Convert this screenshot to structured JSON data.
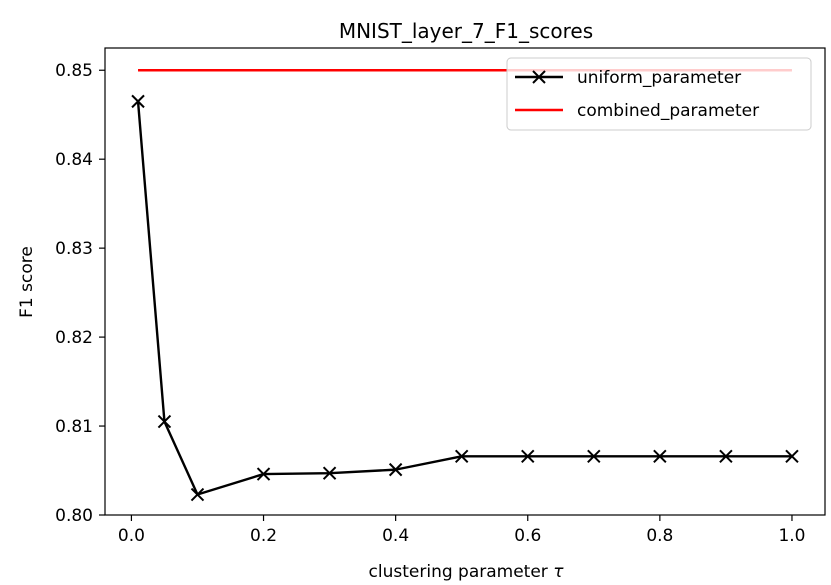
{
  "chart_data": {
    "type": "line",
    "title": "MNIST_layer_7_F1_scores",
    "xlabel_main": "clustering parameter ",
    "xlabel_symbol": "τ",
    "ylabel": "F1 score",
    "xlim": [
      -0.04,
      1.05
    ],
    "ylim": [
      0.8,
      0.8525
    ],
    "x_ticks": [
      0.0,
      0.2,
      0.4,
      0.6,
      0.8,
      1.0
    ],
    "x_tick_labels": [
      "0.0",
      "0.2",
      "0.4",
      "0.6",
      "0.8",
      "1.0"
    ],
    "y_ticks": [
      0.8,
      0.81,
      0.82,
      0.83,
      0.84,
      0.85
    ],
    "y_tick_labels": [
      "0.80",
      "0.81",
      "0.82",
      "0.83",
      "0.84",
      "0.85"
    ],
    "legend_position": "top-right",
    "series": [
      {
        "name": "uniform_parameter",
        "color": "#000000",
        "marker": "x",
        "x": [
          0.01,
          0.05,
          0.1,
          0.2,
          0.3,
          0.4,
          0.5,
          0.6,
          0.7,
          0.8,
          0.9,
          1.0
        ],
        "y": [
          0.8465,
          0.8105,
          0.8023,
          0.8046,
          0.8047,
          0.8051,
          0.8066,
          0.8066,
          0.8066,
          0.8066,
          0.8066,
          0.8066
        ]
      },
      {
        "name": "combined_parameter",
        "color": "#ff0000",
        "marker": "none",
        "x": [
          0.01,
          1.0
        ],
        "y": [
          0.85,
          0.85
        ]
      }
    ]
  }
}
